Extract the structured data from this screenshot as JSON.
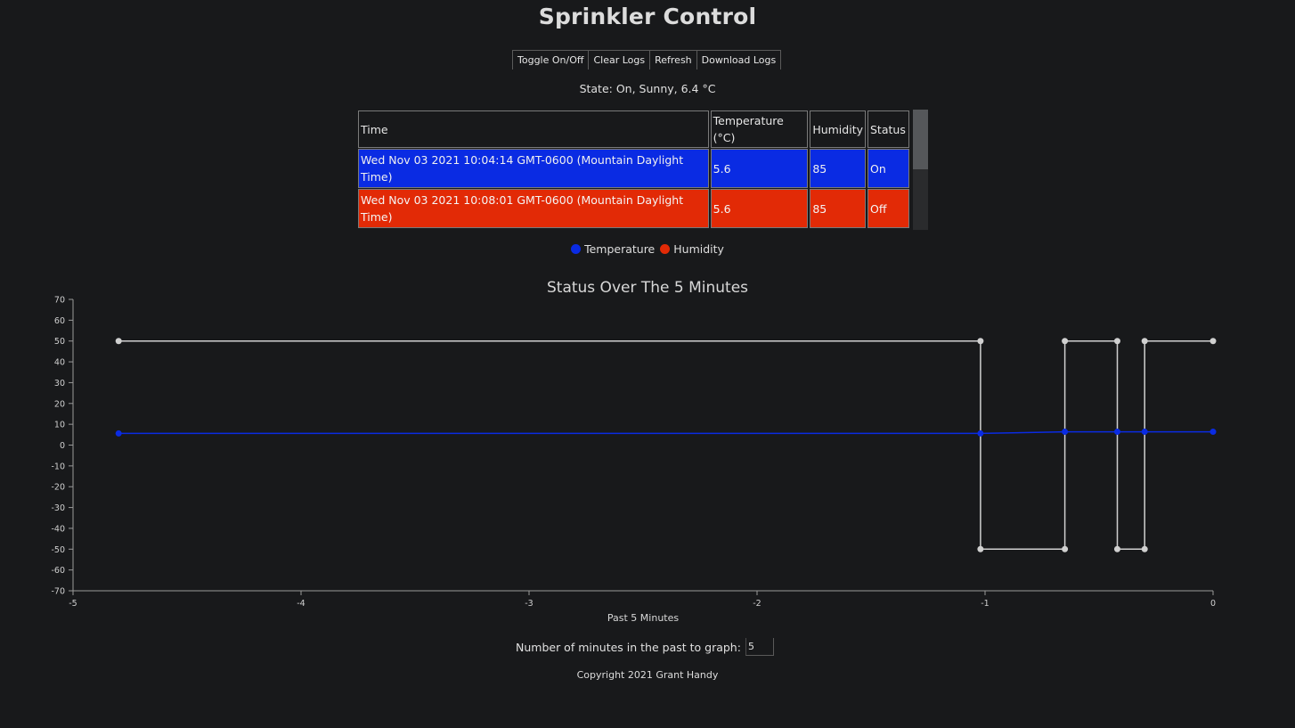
{
  "header": {
    "title": "Sprinkler Control"
  },
  "toolbar": {
    "toggle_label": "Toggle On/Off",
    "clear_label": "Clear Logs",
    "refresh_label": "Refresh",
    "download_label": "Download Logs"
  },
  "state_text": "State: On, Sunny, 6.4 °C",
  "table": {
    "columns": [
      "Time",
      "Temperature (°C)",
      "Humidity",
      "Status"
    ],
    "rows": [
      {
        "time": "Wed Nov 03 2021 10:04:14 GMT-0600 (Mountain Daylight Time)",
        "temperature": "5.6",
        "humidity": "85",
        "status": "On"
      },
      {
        "time": "Wed Nov 03 2021 10:08:01 GMT-0600 (Mountain Daylight Time)",
        "temperature": "5.6",
        "humidity": "85",
        "status": "Off"
      }
    ]
  },
  "legend": {
    "items": [
      {
        "label": "Temperature",
        "color": "#0a2be3"
      },
      {
        "label": "Humidity",
        "color": "#e22a06"
      }
    ]
  },
  "chart_data": {
    "type": "line",
    "title": "Status Over The 5 Minutes",
    "xlabel": "Past 5 Minutes",
    "ylabel": "",
    "xlim": [
      -5,
      0
    ],
    "ylim": [
      -70,
      70
    ],
    "x_ticks": [
      -5,
      -4,
      -3,
      -2,
      -1,
      0
    ],
    "y_ticks": [
      70,
      60,
      50,
      40,
      30,
      20,
      10,
      0,
      -10,
      -20,
      -30,
      -40,
      -50,
      -60,
      -70
    ],
    "grid": false,
    "series": [
      {
        "color": "#d0d0d0",
        "points": [
          [
            -4.8,
            50
          ],
          [
            -1.02,
            50
          ],
          [
            -1.02,
            -50
          ],
          [
            -0.65,
            -50
          ],
          [
            -0.65,
            50
          ],
          [
            -0.42,
            50
          ],
          [
            -0.42,
            -50
          ],
          [
            -0.3,
            -50
          ],
          [
            -0.3,
            50
          ],
          [
            0,
            50
          ]
        ]
      },
      {
        "color": "#0a2be3",
        "points": [
          [
            -4.8,
            5.6
          ],
          [
            -1.02,
            5.6
          ],
          [
            -0.65,
            6.4
          ],
          [
            -0.42,
            6.4
          ],
          [
            -0.3,
            6.4
          ],
          [
            0,
            6.4
          ]
        ]
      }
    ]
  },
  "minutes": {
    "label": "Number of minutes in the past to graph:",
    "value": "5"
  },
  "footer": {
    "copyright": "Copyright 2021 Grant Handy"
  }
}
